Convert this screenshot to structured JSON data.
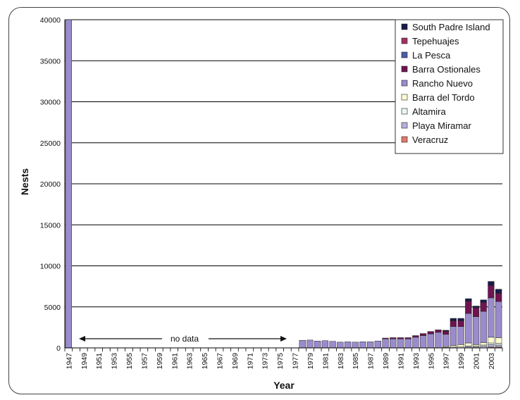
{
  "chart_data": {
    "type": "bar",
    "stacked": true,
    "title": "",
    "xlabel": "Year",
    "ylabel": "Nests",
    "ylim": [
      0,
      40000
    ],
    "yticks": [
      0,
      5000,
      10000,
      15000,
      20000,
      25000,
      30000,
      35000,
      40000
    ],
    "grid": true,
    "legend_position": "top-right",
    "annotation": "no data",
    "categories": [
      "1947",
      "1948",
      "1949",
      "1950",
      "1951",
      "1952",
      "1953",
      "1954",
      "1955",
      "1956",
      "1957",
      "1958",
      "1959",
      "1960",
      "1961",
      "1962",
      "1963",
      "1964",
      "1965",
      "1966",
      "1967",
      "1968",
      "1969",
      "1970",
      "1971",
      "1972",
      "1973",
      "1974",
      "1975",
      "1976",
      "1977",
      "1978",
      "1979",
      "1980",
      "1981",
      "1982",
      "1983",
      "1984",
      "1985",
      "1986",
      "1987",
      "1988",
      "1989",
      "1990",
      "1991",
      "1992",
      "1993",
      "1994",
      "1995",
      "1996",
      "1997",
      "1998",
      "1999",
      "2000",
      "2001",
      "2002",
      "2003",
      "2004"
    ],
    "tick_labels": [
      "1947",
      "1949",
      "1951",
      "1953",
      "1955",
      "1957",
      "1959",
      "1961",
      "1963",
      "1965",
      "1967",
      "1969",
      "1971",
      "1973",
      "1975",
      "1977",
      "1979",
      "1981",
      "1983",
      "1985",
      "1987",
      "1989",
      "1991",
      "1993",
      "1995",
      "1997",
      "1999",
      "2001",
      "2003"
    ],
    "series": [
      {
        "name": "Veracruz",
        "color": "#e07a6a",
        "values": [
          0,
          0,
          0,
          0,
          0,
          0,
          0,
          0,
          0,
          0,
          0,
          0,
          0,
          0,
          0,
          0,
          0,
          0,
          0,
          0,
          0,
          0,
          0,
          0,
          0,
          0,
          0,
          0,
          0,
          0,
          0,
          0,
          0,
          0,
          0,
          0,
          0,
          0,
          0,
          0,
          0,
          0,
          0,
          0,
          0,
          0,
          0,
          0,
          0,
          0,
          0,
          0,
          0,
          0,
          0,
          0,
          100,
          100
        ]
      },
      {
        "name": "Playa Miramar",
        "color": "#b8b0dc",
        "values": [
          0,
          0,
          0,
          0,
          0,
          0,
          0,
          0,
          0,
          0,
          0,
          0,
          0,
          0,
          0,
          0,
          0,
          0,
          0,
          0,
          0,
          0,
          0,
          0,
          0,
          0,
          0,
          0,
          0,
          0,
          0,
          0,
          0,
          0,
          0,
          0,
          0,
          0,
          0,
          0,
          0,
          0,
          0,
          0,
          0,
          0,
          0,
          0,
          0,
          0,
          0,
          0,
          0,
          150,
          100,
          200,
          300,
          250
        ]
      },
      {
        "name": "Altamira",
        "color": "#e8f6f4",
        "values": [
          0,
          0,
          0,
          0,
          0,
          0,
          0,
          0,
          0,
          0,
          0,
          0,
          0,
          0,
          0,
          0,
          0,
          0,
          0,
          0,
          0,
          0,
          0,
          0,
          0,
          0,
          0,
          0,
          0,
          0,
          0,
          0,
          0,
          0,
          0,
          0,
          0,
          0,
          0,
          0,
          0,
          0,
          0,
          0,
          0,
          0,
          0,
          0,
          0,
          0,
          50,
          100,
          150,
          100,
          100,
          150,
          200,
          200
        ]
      },
      {
        "name": "Barra del Tordo",
        "color": "#fdfbd0",
        "values": [
          0,
          0,
          0,
          0,
          0,
          0,
          0,
          0,
          0,
          0,
          0,
          0,
          0,
          0,
          0,
          0,
          0,
          0,
          0,
          0,
          0,
          0,
          0,
          0,
          0,
          0,
          0,
          0,
          0,
          0,
          0,
          0,
          0,
          0,
          0,
          0,
          0,
          0,
          0,
          0,
          0,
          0,
          0,
          0,
          0,
          0,
          0,
          0,
          0,
          0,
          100,
          200,
          250,
          350,
          200,
          300,
          700,
          700
        ]
      },
      {
        "name": "Rancho Nuevo",
        "color": "#9a8ccc",
        "values": [
          40000,
          0,
          0,
          0,
          0,
          0,
          0,
          0,
          0,
          0,
          0,
          0,
          0,
          0,
          0,
          0,
          0,
          0,
          0,
          0,
          0,
          0,
          0,
          0,
          0,
          0,
          0,
          0,
          0,
          0,
          0,
          924,
          954,
          836,
          878,
          798,
          702,
          740,
          702,
          748,
          740,
          842,
          1100,
          1100,
          1100,
          1100,
          1300,
          1500,
          1700,
          1900,
          1500,
          2300,
          2200,
          3600,
          3400,
          3800,
          4800,
          4400
        ]
      },
      {
        "name": "Barra Ostionales",
        "color": "#6e1450",
        "values": [
          0,
          0,
          0,
          0,
          0,
          0,
          0,
          0,
          0,
          0,
          0,
          0,
          0,
          0,
          0,
          0,
          0,
          0,
          0,
          0,
          0,
          0,
          0,
          0,
          0,
          0,
          0,
          0,
          0,
          0,
          0,
          0,
          0,
          0,
          0,
          0,
          0,
          0,
          0,
          0,
          0,
          0,
          100,
          150,
          150,
          150,
          200,
          250,
          300,
          300,
          400,
          700,
          700,
          1500,
          1100,
          1100,
          1500,
          1000
        ]
      },
      {
        "name": "La Pesca",
        "color": "#4b5ca8",
        "values": [
          0,
          0,
          0,
          0,
          0,
          0,
          0,
          0,
          0,
          0,
          0,
          0,
          0,
          0,
          0,
          0,
          0,
          0,
          0,
          0,
          0,
          0,
          0,
          0,
          0,
          0,
          0,
          0,
          0,
          0,
          0,
          0,
          0,
          0,
          0,
          0,
          0,
          0,
          0,
          0,
          0,
          0,
          0,
          0,
          0,
          0,
          0,
          0,
          0,
          0,
          0,
          0,
          0,
          0,
          0,
          0,
          0,
          0
        ]
      },
      {
        "name": "Tepehuajes",
        "color": "#a03262",
        "values": [
          0,
          0,
          0,
          0,
          0,
          0,
          0,
          0,
          0,
          0,
          0,
          0,
          0,
          0,
          0,
          0,
          0,
          0,
          0,
          0,
          0,
          0,
          0,
          0,
          0,
          0,
          0,
          0,
          0,
          0,
          0,
          0,
          0,
          0,
          0,
          0,
          0,
          0,
          0,
          0,
          0,
          0,
          0,
          0,
          0,
          0,
          0,
          0,
          0,
          0,
          0,
          0,
          0,
          0,
          0,
          0,
          0,
          0
        ]
      },
      {
        "name": "South Padre Island",
        "color": "#1a1a4a",
        "values": [
          0,
          0,
          0,
          0,
          0,
          0,
          0,
          0,
          0,
          0,
          0,
          0,
          0,
          0,
          0,
          0,
          0,
          0,
          0,
          0,
          0,
          0,
          0,
          0,
          0,
          0,
          0,
          0,
          0,
          0,
          0,
          0,
          0,
          0,
          0,
          0,
          0,
          0,
          0,
          0,
          0,
          0,
          0,
          0,
          0,
          0,
          0,
          0,
          0,
          0,
          100,
          300,
          300,
          300,
          200,
          300,
          500,
          500
        ]
      }
    ]
  }
}
